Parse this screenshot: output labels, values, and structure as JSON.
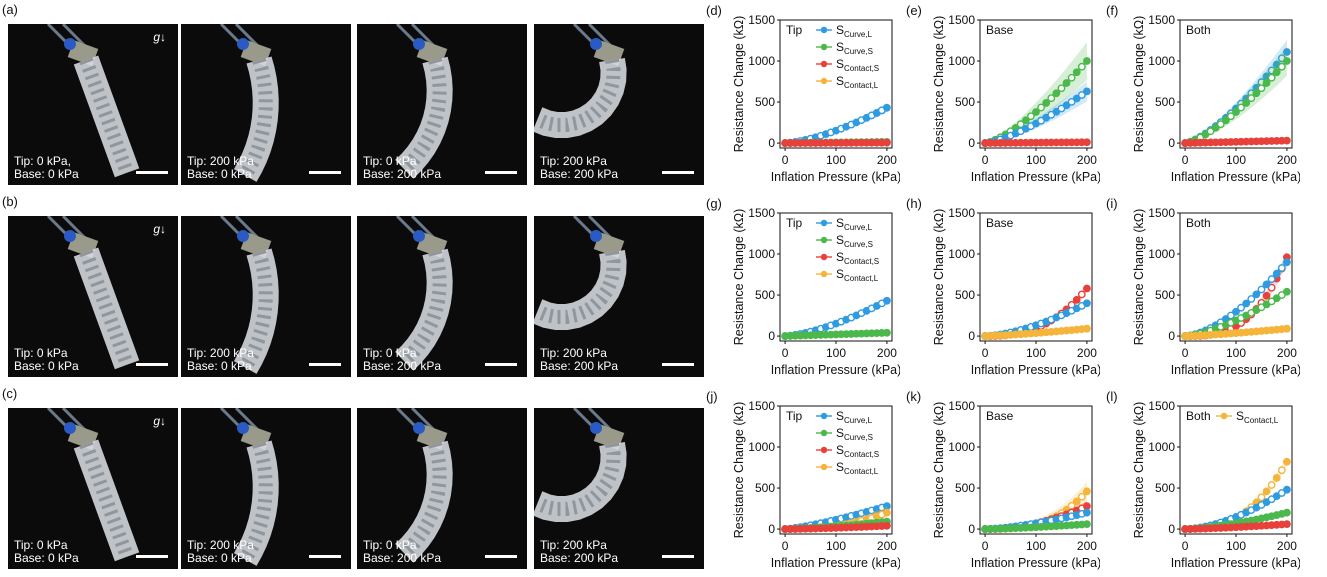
{
  "row_labels": [
    "(a)",
    "(b)",
    "(c)"
  ],
  "g_label": "g",
  "photo_rows": [
    [
      {
        "caption": "Tip: 0 kPa,\nBase: 0 kPa"
      },
      {
        "caption": "Tip: 200 kPa\nBase: 0 kPa"
      },
      {
        "caption": "Tip: 0 kPa\nBase: 200 kPa"
      },
      {
        "caption": "Tip: 200 kPa\nBase: 200 kPa"
      }
    ],
    [
      {
        "caption": "Tip: 0 kPa\nBase: 0 kPa"
      },
      {
        "caption": "Tip: 200 kPa\nBase: 0 kPa"
      },
      {
        "caption": "Tip: 0 kPa\nBase: 200 kPa"
      },
      {
        "caption": "Tip: 200 kPa\nBase: 200 kPa"
      }
    ],
    [
      {
        "caption": "Tip: 0 kPa\nBase: 0 kPa"
      },
      {
        "caption": "Tip: 200 kPa\nBase: 0 kPa"
      },
      {
        "caption": "Tip: 0 kPa\nBase: 200 kPa"
      },
      {
        "caption": "Tip: 200 kPa\nBase: 200 kPa"
      }
    ]
  ],
  "colors": {
    "curve_L": "#2f9be0",
    "curve_S": "#4bb84b",
    "contact_S": "#e8403a",
    "contact_L": "#f5b43a"
  },
  "chart_data": [
    {
      "label": "(d)",
      "title": "Tip",
      "type": "scatter",
      "xlabel": "Inflation Pressure (kPa)",
      "ylabel": "Resistance Change (kΩ)",
      "xlim": [
        -10,
        210
      ],
      "ylim": [
        -60,
        1500
      ],
      "xticks": [
        0,
        100,
        200
      ],
      "yticks": [
        0,
        500,
        1000,
        1500
      ],
      "legend": [
        {
          "key": "curve_L",
          "main": "S",
          "sub": "Curve,L"
        },
        {
          "key": "curve_S",
          "main": "S",
          "sub": "Curve,S"
        },
        {
          "key": "contact_S",
          "main": "S",
          "sub": "Contact,S"
        },
        {
          "key": "contact_L",
          "main": "S",
          "sub": "Contact,L"
        }
      ],
      "series": [
        {
          "key": "curve_L",
          "end": 430,
          "exp": 1.5,
          "band": 60
        },
        {
          "key": "curve_S",
          "end": 15,
          "exp": 1,
          "band": 0
        },
        {
          "key": "contact_S",
          "end": 5,
          "exp": 1,
          "band": 0
        }
      ]
    },
    {
      "label": "(e)",
      "title": "Base",
      "type": "scatter",
      "xlabel": "Inflation Pressure (kPa)",
      "ylabel": "Resistance Change (kΩ)",
      "xlim": [
        -10,
        210
      ],
      "ylim": [
        -60,
        1500
      ],
      "xticks": [
        0,
        100,
        200
      ],
      "yticks": [
        0,
        500,
        1000,
        1500
      ],
      "legend": [],
      "series": [
        {
          "key": "curve_S",
          "end": 1000,
          "exp": 1.4,
          "band": 230
        },
        {
          "key": "curve_L",
          "end": 630,
          "exp": 1.4,
          "band": 120
        },
        {
          "key": "contact_S",
          "end": 10,
          "exp": 1,
          "band": 0
        }
      ]
    },
    {
      "label": "(f)",
      "title": "Both",
      "type": "scatter",
      "xlabel": "Inflation Pressure (kPa)",
      "ylabel": "Resistance Change (kΩ)",
      "xlim": [
        -10,
        210
      ],
      "ylim": [
        -60,
        1500
      ],
      "xticks": [
        0,
        100,
        200
      ],
      "yticks": [
        0,
        500,
        1000,
        1500
      ],
      "legend": [],
      "series": [
        {
          "key": "curve_L",
          "end": 1110,
          "exp": 1.4,
          "band": 150
        },
        {
          "key": "curve_S",
          "end": 1000,
          "exp": 1.4,
          "band": 180
        },
        {
          "key": "contact_S",
          "end": 30,
          "exp": 1,
          "band": 0
        }
      ]
    },
    {
      "label": "(g)",
      "title": "Tip",
      "type": "scatter",
      "xlabel": "Inflation Pressure (kPa)",
      "ylabel": "Resistance Change (kΩ)",
      "xlim": [
        -10,
        210
      ],
      "ylim": [
        -60,
        1500
      ],
      "xticks": [
        0,
        100,
        200
      ],
      "yticks": [
        0,
        500,
        1000,
        1500
      ],
      "legend": [
        {
          "key": "curve_L",
          "main": "S",
          "sub": "Curve,L"
        },
        {
          "key": "curve_S",
          "main": "S",
          "sub": "Curve,S"
        },
        {
          "key": "contact_S",
          "main": "S",
          "sub": "Contact,S"
        },
        {
          "key": "contact_L",
          "main": "S",
          "sub": "Contact,L"
        }
      ],
      "series": [
        {
          "key": "curve_L",
          "end": 430,
          "exp": 1.5,
          "band": 30
        },
        {
          "key": "curve_S",
          "end": 40,
          "exp": 1,
          "band": 0
        }
      ]
    },
    {
      "label": "(h)",
      "title": "Base",
      "type": "scatter",
      "xlabel": "Inflation Pressure (kPa)",
      "ylabel": "Resistance Change (kΩ)",
      "xlim": [
        -10,
        210
      ],
      "ylim": [
        -60,
        1500
      ],
      "xticks": [
        0,
        100,
        200
      ],
      "yticks": [
        0,
        500,
        1000,
        1500
      ],
      "legend": [],
      "series": [
        {
          "key": "contact_S",
          "end": 580,
          "exp": 2.6,
          "band": 40
        },
        {
          "key": "curve_L",
          "end": 400,
          "exp": 1.6,
          "band": 30
        },
        {
          "key": "contact_L",
          "end": 90,
          "exp": 1.3,
          "band": 0
        }
      ]
    },
    {
      "label": "(i)",
      "title": "Both",
      "type": "scatter",
      "xlabel": "Inflation Pressure (kPa)",
      "ylabel": "Resistance Change (kΩ)",
      "xlim": [
        -10,
        210
      ],
      "ylim": [
        -60,
        1500
      ],
      "xticks": [
        0,
        100,
        200
      ],
      "yticks": [
        0,
        500,
        1000,
        1500
      ],
      "legend": [],
      "series": [
        {
          "key": "contact_S",
          "end": 960,
          "exp": 3.0,
          "band": 80
        },
        {
          "key": "curve_L",
          "end": 900,
          "exp": 1.6,
          "band": 60
        },
        {
          "key": "curve_S",
          "end": 540,
          "exp": 1.5,
          "band": 30
        },
        {
          "key": "contact_L",
          "end": 90,
          "exp": 1.3,
          "band": 0
        }
      ]
    },
    {
      "label": "(j)",
      "title": "Tip",
      "type": "scatter",
      "xlabel": "Inflation Pressure (kPa)",
      "ylabel": "Resistance Change (kΩ)",
      "xlim": [
        -10,
        210
      ],
      "ylim": [
        -60,
        1500
      ],
      "xticks": [
        0,
        100,
        200
      ],
      "yticks": [
        0,
        500,
        1000,
        1500
      ],
      "legend": [
        {
          "key": "curve_L",
          "main": "S",
          "sub": "Curve,L"
        },
        {
          "key": "curve_S",
          "main": "S",
          "sub": "Curve,S"
        },
        {
          "key": "contact_S",
          "main": "S",
          "sub": "Contact,S"
        },
        {
          "key": "contact_L",
          "main": "S",
          "sub": "Contact,L"
        }
      ],
      "series": [
        {
          "key": "curve_L",
          "end": 280,
          "exp": 1.3,
          "band": 40
        },
        {
          "key": "contact_L",
          "end": 200,
          "exp": 2.4,
          "band": 80
        },
        {
          "key": "curve_S",
          "end": 90,
          "exp": 1.4,
          "band": 0
        },
        {
          "key": "contact_S",
          "end": 40,
          "exp": 1.5,
          "band": 0
        }
      ]
    },
    {
      "label": "(k)",
      "title": "Base",
      "type": "scatter",
      "xlabel": "Inflation Pressure (kPa)",
      "ylabel": "Resistance Change (kΩ)",
      "xlim": [
        -10,
        210
      ],
      "ylim": [
        -60,
        1500
      ],
      "xticks": [
        0,
        100,
        200
      ],
      "yticks": [
        0,
        500,
        1000,
        1500
      ],
      "legend": [],
      "series": [
        {
          "key": "contact_L",
          "end": 460,
          "exp": 3.0,
          "band": 120
        },
        {
          "key": "contact_S",
          "end": 280,
          "exp": 2.0,
          "band": 60
        },
        {
          "key": "curve_L",
          "end": 200,
          "exp": 1.5,
          "band": 30
        },
        {
          "key": "curve_S",
          "end": 60,
          "exp": 1.4,
          "band": 0
        }
      ]
    },
    {
      "label": "(l)",
      "title": "Both",
      "type": "scatter",
      "xlabel": "Inflation Pressure (kPa)",
      "ylabel": "Resistance Change (kΩ)",
      "xlim": [
        -10,
        210
      ],
      "ylim": [
        -60,
        1500
      ],
      "xticks": [
        0,
        100,
        200
      ],
      "yticks": [
        0,
        500,
        1000,
        1500
      ],
      "legend": [
        {
          "key": "contact_L",
          "main": "S",
          "sub": "Contact,L"
        }
      ],
      "series": [
        {
          "key": "contact_L",
          "end": 820,
          "exp": 2.6,
          "band": 60
        },
        {
          "key": "curve_L",
          "end": 480,
          "exp": 1.7,
          "band": 30
        },
        {
          "key": "curve_S",
          "end": 200,
          "exp": 1.5,
          "band": 0
        },
        {
          "key": "contact_S",
          "end": 60,
          "exp": 1.4,
          "band": 0
        }
      ]
    }
  ]
}
